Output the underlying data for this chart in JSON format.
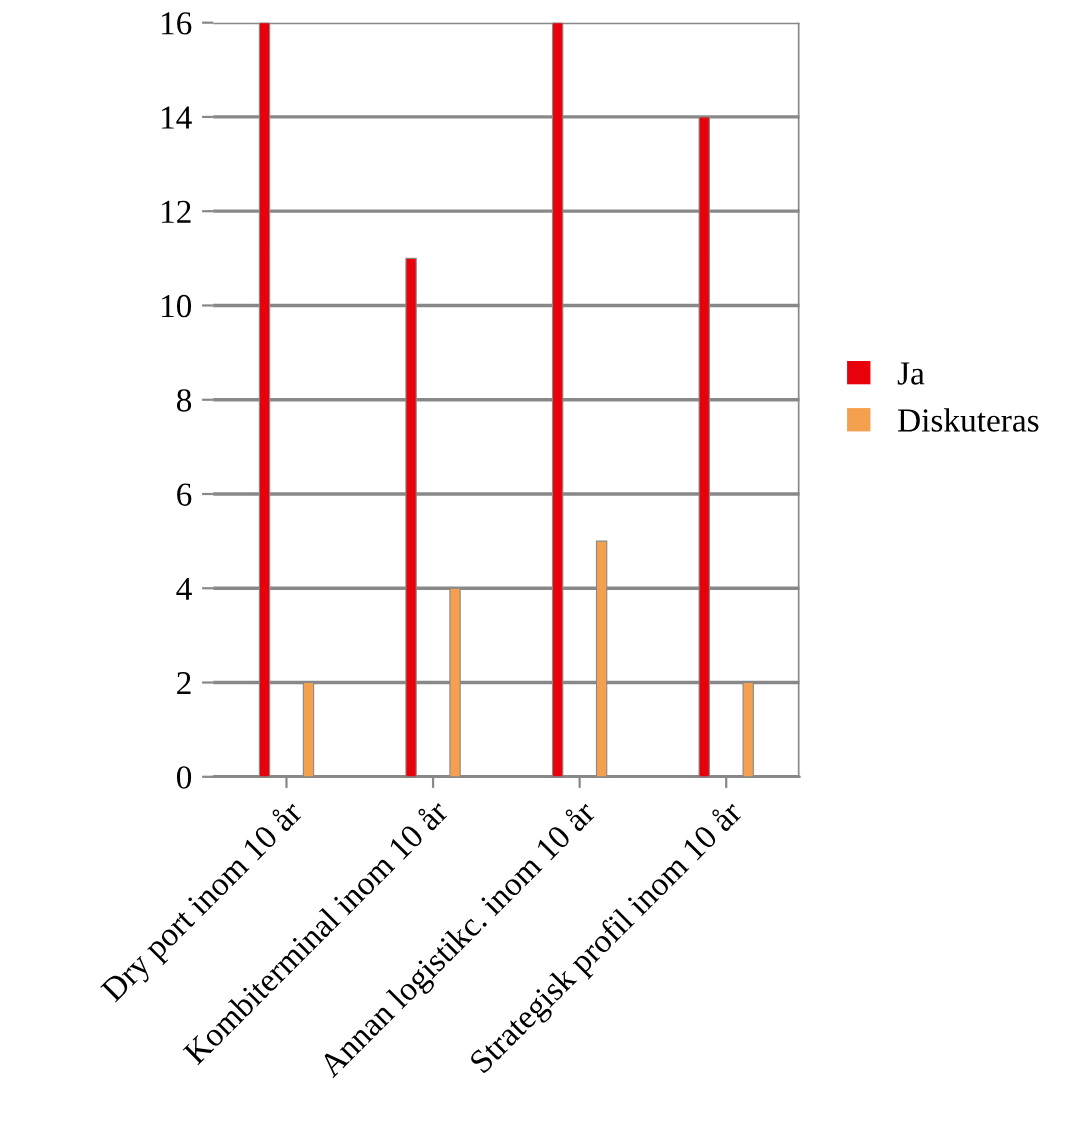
{
  "chart_data": {
    "type": "bar",
    "categories": [
      "Dry port inom 10 år",
      "Kombiterminal inom 10 år",
      "Annan logistikc. inom 10 år",
      "Strategisk profil inom 10 år"
    ],
    "series": [
      {
        "name": "Ja",
        "color": "#e8000b",
        "values": [
          16,
          11,
          16,
          14
        ]
      },
      {
        "name": "Diskuteras",
        "color": "#f5a04e",
        "values": [
          2,
          4,
          5,
          2
        ]
      }
    ],
    "ylim": [
      0,
      16
    ],
    "yticks": [
      0,
      2,
      4,
      6,
      8,
      10,
      12,
      14,
      16
    ],
    "grid": "y",
    "legend": "right"
  }
}
